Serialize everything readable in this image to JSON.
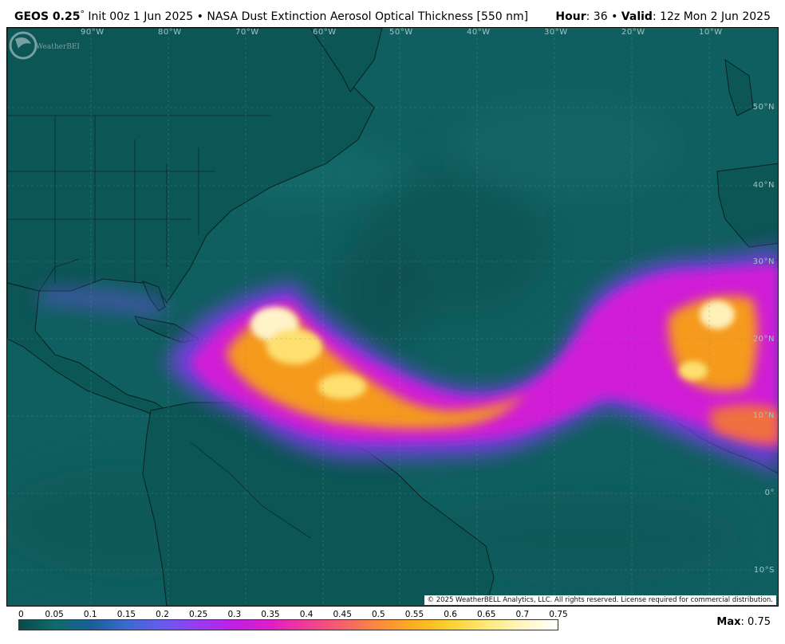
{
  "header": {
    "model": "GEOS 0.25",
    "degree_symbol": "°",
    "init_text": "Init 00z 1 Jun 2025",
    "separator": "•",
    "product": "NASA Dust Extinction Aerosol Optical Thickness [550 nm]",
    "hour_label": "Hour",
    "hour_value": ": 36",
    "valid_label": "Valid",
    "valid_value": ": 12z Mon 2 Jun 2025"
  },
  "map": {
    "longitude_labels": [
      "90°W",
      "80°W",
      "70°W",
      "60°W",
      "50°W",
      "40°W",
      "30°W",
      "20°W",
      "10°W"
    ],
    "latitude_labels": [
      "50°N",
      "40°N",
      "30°N",
      "20°N",
      "10°N",
      "0°",
      "10°S"
    ],
    "copyright": "© 2025 WeatherBELL Analytics, LLC. All rights reserved. License required for commercial distribution.",
    "logo_text": "WeatherBELL",
    "colors": {
      "ocean_base": "#0f5e5f",
      "land_base": "#0d5655",
      "low_dust": "#7a3fe6",
      "mid_dust": "#d61fd6",
      "high_dust": "#f7a21a",
      "peak_dust": "#fff0b0"
    }
  },
  "legend": {
    "ticks": [
      "0",
      "0.05",
      "0.1",
      "0.15",
      "0.2",
      "0.25",
      "0.3",
      "0.35",
      "0.4",
      "0.45",
      "0.5",
      "0.55",
      "0.6",
      "0.65",
      "0.7",
      "0.75"
    ],
    "gradient_colors": [
      "#0c4a4a",
      "#0f6a6a",
      "#1a5e9a",
      "#3a6ad0",
      "#6a5af0",
      "#9a3af0",
      "#c01ee6",
      "#e01ec8",
      "#f03c96",
      "#f6606a",
      "#fa8a3c",
      "#fcb01e",
      "#fdd030",
      "#fee878",
      "#fff6c0",
      "#ffffff"
    ],
    "max_label": "Max",
    "max_value": ": 0.75"
  }
}
